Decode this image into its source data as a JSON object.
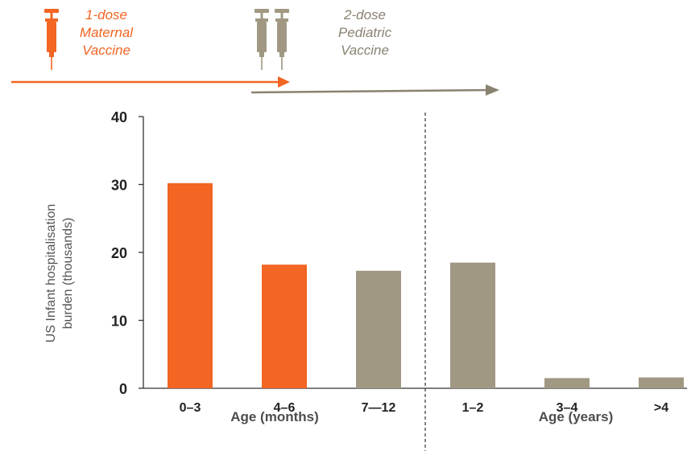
{
  "vaccines": {
    "maternal": {
      "lines": [
        "1-dose",
        "Maternal",
        "Vaccine"
      ],
      "color": "#f26522",
      "icon": "syringe-icon"
    },
    "pediatric": {
      "lines": [
        "2-dose",
        "Pediatric",
        "Vaccine"
      ],
      "color": "#a09882",
      "icon": "syringe-icon"
    }
  },
  "chart_data": {
    "type": "bar",
    "categories": [
      "0–3",
      "4–6",
      "7—12",
      "1–2",
      "3–4",
      ">4"
    ],
    "values": [
      30.2,
      18.2,
      17.3,
      18.5,
      1.5,
      1.6
    ],
    "colors": [
      "#f26522",
      "#f26522",
      "#a09882",
      "#a09882",
      "#a09882",
      "#a09882"
    ],
    "ylabel_lines": [
      "US Infant hospitalisation",
      "burden (thousands)"
    ],
    "ylim": [
      0,
      40
    ],
    "yticks": [
      0,
      10,
      20,
      30,
      40
    ],
    "groups": [
      {
        "label": "Age (months)",
        "categories": [
          "0–3",
          "4–6",
          "7—12"
        ]
      },
      {
        "label": "Age (years)",
        "categories": [
          "1–2",
          "3–4",
          ">4"
        ]
      }
    ],
    "grid": false,
    "legend": "none"
  }
}
